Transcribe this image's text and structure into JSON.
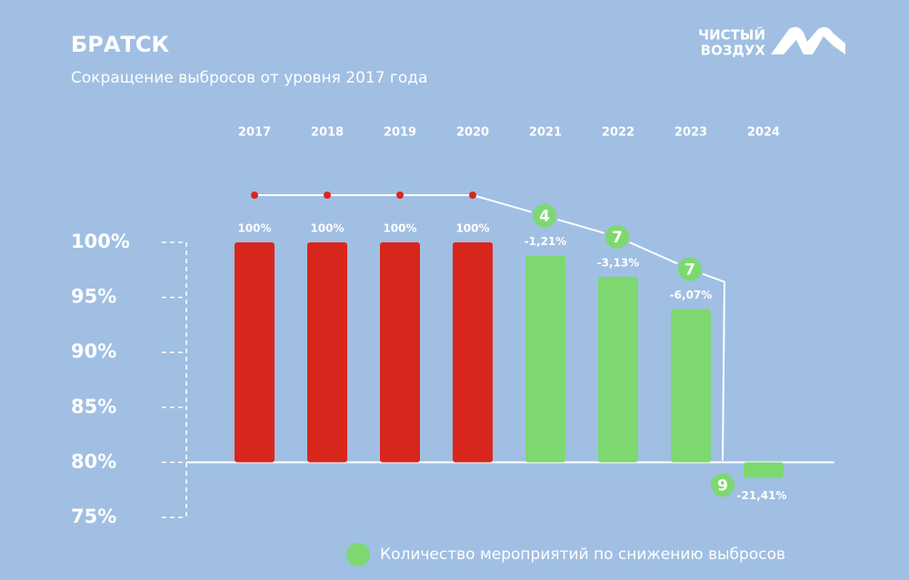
{
  "chart_data": {
    "type": "bar",
    "title": "БРАТСК",
    "subtitle": "Сокращение выбросов от уровня 2017 года",
    "brand": [
      "ЧИСТЫЙ",
      "ВОЗДУХ"
    ],
    "categories": [
      "2017",
      "2018",
      "2019",
      "2020",
      "2021",
      "2022",
      "2023",
      "2024"
    ],
    "values": [
      100,
      100,
      100,
      100,
      98.79,
      96.87,
      93.93,
      78.59
    ],
    "value_labels": [
      "100%",
      "100%",
      "100%",
      "100%",
      null,
      null,
      null,
      null
    ],
    "changes": [
      null,
      null,
      null,
      null,
      -1.21,
      -3.13,
      -6.07,
      -21.41
    ],
    "change_labels": [
      null,
      null,
      null,
      null,
      "-1,21%",
      "-3,13%",
      "-6,07%",
      "-21,41%"
    ],
    "colors": [
      "#d9261c",
      "#d9261c",
      "#d9261c",
      "#d9261c",
      "#7dd870",
      "#7dd870",
      "#7dd870",
      "#7dd870"
    ],
    "measures": [
      null,
      null,
      null,
      null,
      4,
      7,
      7,
      9
    ],
    "measures_name": "Количество мероприятий по снижению выбросов",
    "measures_color": "#7dd870",
    "baseline": 80,
    "ylim": [
      75,
      100
    ],
    "yticks": [
      {
        "value": 100,
        "label": "100%"
      },
      {
        "value": 95,
        "label": "95%"
      },
      {
        "value": 90,
        "label": "90%"
      },
      {
        "value": 85,
        "label": "85%"
      },
      {
        "value": 80,
        "label": "80%"
      },
      {
        "value": 75,
        "label": "75%"
      }
    ]
  }
}
